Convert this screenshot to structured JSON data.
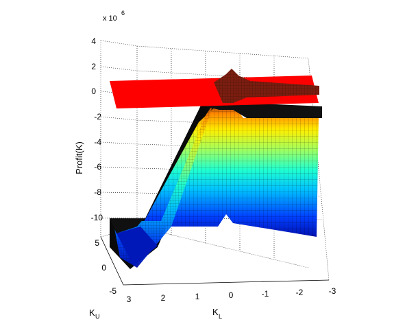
{
  "chart_data": {
    "type": "surface",
    "title": "",
    "zlabel": "Profit(K)",
    "xlabel_base": "K",
    "xlabel_sub": "L",
    "ylabel_base": "K",
    "ylabel_sub": "U",
    "exponent_base": "x 10",
    "exponent_power": "6",
    "x_ticks": [
      "3",
      "2",
      "1",
      "0",
      "-1",
      "-2",
      "-3"
    ],
    "y_ticks": [
      "5",
      "0",
      "-5"
    ],
    "z_ticks": [
      "4",
      "2",
      "0",
      "-2",
      "-4",
      "-6",
      "-8",
      "-10"
    ],
    "xlim": [
      -3,
      3
    ],
    "ylim": [
      -5,
      5
    ],
    "zlim": [
      -10,
      4
    ],
    "zero_plane": {
      "z": 0,
      "color": "#ff0000"
    },
    "surface_colormap": "jet",
    "grid": true
  }
}
